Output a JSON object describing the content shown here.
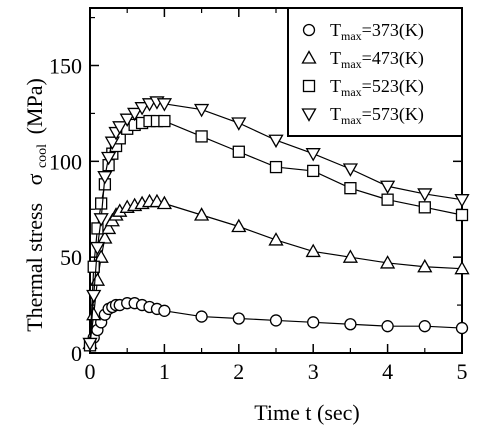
{
  "chart_data": {
    "type": "line",
    "xlabel": "Time  t (sec)",
    "ylabel_main": "Thermal stress",
    "ylabel_sigma": "σ",
    "ylabel_sub": "cool",
    "ylabel_unit": "(MPa)",
    "xlim": [
      0,
      5
    ],
    "ylim": [
      0,
      180
    ],
    "xticks": [
      0,
      1,
      2,
      3,
      4,
      5
    ],
    "yticks": [
      0,
      50,
      100,
      150
    ],
    "grid": false,
    "legend_position": "top-right",
    "series": [
      {
        "name": "Tmax=373(K)",
        "legend_main": "T",
        "legend_sub": "max",
        "legend_value": "=373(K)",
        "marker": "circle",
        "x": [
          0,
          0.05,
          0.1,
          0.15,
          0.2,
          0.25,
          0.3,
          0.35,
          0.4,
          0.5,
          0.6,
          0.7,
          0.8,
          0.9,
          1.0,
          1.5,
          2.0,
          2.5,
          3.0,
          3.5,
          4.0,
          4.5,
          5.0
        ],
        "y": [
          4,
          8,
          12,
          16,
          20,
          23,
          24,
          25,
          25,
          26,
          26,
          25,
          24,
          23,
          22,
          19,
          18,
          17,
          16,
          15,
          14,
          14,
          13
        ]
      },
      {
        "name": "Tmax=473(K)",
        "legend_main": "T",
        "legend_sub": "max",
        "legend_value": "=473(K)",
        "marker": "triangle-up",
        "x": [
          0,
          0.05,
          0.1,
          0.15,
          0.2,
          0.25,
          0.3,
          0.35,
          0.4,
          0.5,
          0.6,
          0.7,
          0.8,
          0.9,
          1.0,
          1.5,
          2.0,
          2.5,
          3.0,
          3.5,
          4.0,
          4.5,
          5.0
        ],
        "y": [
          5,
          20,
          38,
          50,
          60,
          65,
          69,
          72,
          74,
          76,
          77,
          78,
          79,
          79,
          78,
          72,
          66,
          59,
          53,
          50,
          47,
          45,
          44
        ]
      },
      {
        "name": "Tmax=523(K)",
        "legend_main": "T",
        "legend_sub": "max",
        "legend_value": "=523(K)",
        "marker": "square",
        "x": [
          0,
          0.05,
          0.1,
          0.15,
          0.2,
          0.25,
          0.3,
          0.35,
          0.4,
          0.5,
          0.6,
          0.7,
          0.8,
          0.9,
          1.0,
          1.5,
          2.0,
          2.5,
          3.0,
          3.5,
          4.0,
          4.5,
          5.0
        ],
        "y": [
          4,
          45,
          65,
          78,
          88,
          98,
          104,
          108,
          112,
          117,
          119,
          120,
          121,
          121,
          121,
          113,
          105,
          97,
          95,
          86,
          80,
          76,
          72
        ]
      },
      {
        "name": "Tmax=573(K)",
        "legend_main": "T",
        "legend_sub": "max",
        "legend_value": "=573(K)",
        "marker": "triangle-down",
        "x": [
          0,
          0.05,
          0.1,
          0.15,
          0.2,
          0.25,
          0.3,
          0.35,
          0.4,
          0.5,
          0.6,
          0.7,
          0.8,
          0.9,
          1.0,
          1.5,
          2.0,
          2.5,
          3.0,
          3.5,
          4.0,
          4.5,
          5.0
        ],
        "y": [
          5,
          30,
          55,
          70,
          92,
          102,
          110,
          115,
          118,
          122,
          125,
          128,
          130,
          131,
          130,
          127,
          120,
          111,
          104,
          96,
          87,
          83,
          80
        ]
      }
    ]
  }
}
